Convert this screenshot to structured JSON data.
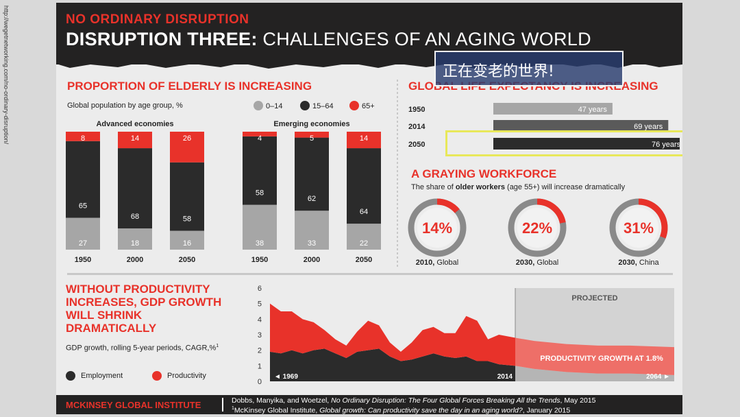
{
  "side_url": "http://wegetnetworking.com/no-ordinary-disruption/",
  "header": {
    "supertitle": "NO ORDINARY DISRUPTION",
    "title_bold": "DISRUPTION THREE:",
    "title_rest": " CHALLENGES OF AN AGING WORLD"
  },
  "overlay_caption": "正在变老的世界!",
  "elderly": {
    "title": "PROPORTION OF ELDERLY IS INCREASING",
    "subtitle": "Global population by age group, %",
    "legend": [
      "0–14",
      "15–64",
      "65+"
    ]
  },
  "life": {
    "title": "GLOBAL LIFE EXPECTANCY IS INCREASING"
  },
  "workforce": {
    "title": "A GRAYING WORKFORCE",
    "subtitle_pre": "The share of ",
    "subtitle_bold": "older workers",
    "subtitle_post": " (age 55+) will increase dramatically"
  },
  "gdp": {
    "title_lines": [
      "WITHOUT PRODUCTIVITY",
      "INCREASES, GDP GROWTH",
      "WILL SHRINK",
      "DRAMATICALLY"
    ],
    "subtitle": "GDP growth, rolling 5-year periods, CAGR,%",
    "subtitle_sup": "1",
    "legend": [
      "Employment",
      "Productivity"
    ]
  },
  "footer": {
    "brand": "MCKINSEY GLOBAL INSTITUTE",
    "source1_pre": "Dobbs, Manyika, and Woetzel, ",
    "source1_italic": "No Ordinary Disruption: The Four Global Forces Breaking All the Trends",
    "source1_post": ", May 2015",
    "source2_pre": "McKinsey Global Institute, ",
    "source2_italic": "Global growth: Can productivity save the day in an aging world?",
    "source2_post": ", January 2015",
    "source2_sup": "1"
  },
  "colors": {
    "red": "#e8322a",
    "dark": "#2b2b2b",
    "gray": "#a6a6a6",
    "projected_bg": "#d3d3d3"
  },
  "chart_data": [
    {
      "type": "bar",
      "stacked": true,
      "title": "Advanced economies",
      "categories": [
        "1950",
        "2000",
        "2050"
      ],
      "series": [
        {
          "name": "0–14",
          "values": [
            27,
            18,
            16
          ]
        },
        {
          "name": "15–64",
          "values": [
            65,
            68,
            58
          ]
        },
        {
          "name": "65+",
          "values": [
            8,
            14,
            26
          ]
        }
      ],
      "ylim": [
        0,
        100
      ]
    },
    {
      "type": "bar",
      "stacked": true,
      "title": "Emerging economies",
      "categories": [
        "1950",
        "2000",
        "2050"
      ],
      "series": [
        {
          "name": "0–14",
          "values": [
            38,
            33,
            22
          ]
        },
        {
          "name": "15–64",
          "values": [
            58,
            62,
            64
          ]
        },
        {
          "name": "65+",
          "values": [
            4,
            5,
            14
          ]
        }
      ],
      "ylim": [
        0,
        100
      ]
    },
    {
      "type": "bar",
      "orientation": "horizontal",
      "categories": [
        "1950",
        "2014",
        "2050"
      ],
      "values": [
        47,
        69,
        76
      ],
      "value_labels": [
        "47 years",
        "69 years",
        "76 years"
      ],
      "xlim": [
        0,
        80
      ]
    },
    {
      "type": "pie",
      "donut": true,
      "items": [
        {
          "value": 14,
          "label": "14%",
          "caption_bold": "2010,",
          "caption": " Global"
        },
        {
          "value": 22,
          "label": "22%",
          "caption_bold": "2030,",
          "caption": " Global"
        },
        {
          "value": 31,
          "label": "31%",
          "caption_bold": "2030,",
          "caption": " China"
        }
      ]
    },
    {
      "type": "area",
      "stacked": true,
      "x": [
        1969,
        1971,
        1973,
        1975,
        1977,
        1979,
        1981,
        1983,
        1985,
        1987,
        1989,
        1991,
        1993,
        1995,
        1997,
        1999,
        2001,
        2003,
        2005,
        2007,
        2009,
        2011,
        2014,
        2020,
        2030,
        2040,
        2050,
        2064
      ],
      "series": [
        {
          "name": "Employment",
          "values": [
            1.9,
            1.8,
            2.0,
            1.8,
            2.0,
            2.1,
            1.8,
            1.5,
            1.9,
            2.0,
            2.1,
            1.6,
            1.3,
            1.4,
            1.6,
            1.8,
            1.6,
            1.5,
            1.6,
            1.3,
            1.3,
            1.1,
            1.0,
            0.8,
            0.6,
            0.5,
            0.5,
            0.4
          ]
        },
        {
          "name": "Productivity",
          "values": [
            3.1,
            2.7,
            2.5,
            2.2,
            1.8,
            1.2,
            0.9,
            0.8,
            1.3,
            1.9,
            1.5,
            0.9,
            0.6,
            1.1,
            1.7,
            1.7,
            1.5,
            1.6,
            2.6,
            2.6,
            1.4,
            1.9,
            1.8,
            1.8,
            1.8,
            1.8,
            1.8,
            1.8
          ]
        }
      ],
      "ylim": [
        0,
        6
      ],
      "yticks": [
        "0",
        "1",
        "2",
        "3",
        "4",
        "5",
        "6"
      ],
      "x_start_label": "1969",
      "x_split_label": "2014",
      "x_end_label": "2064",
      "projected_from": 2014,
      "projected_label": "PROJECTED",
      "annotation": "PRODUCTIVITY GROWTH AT 1.8%"
    }
  ]
}
